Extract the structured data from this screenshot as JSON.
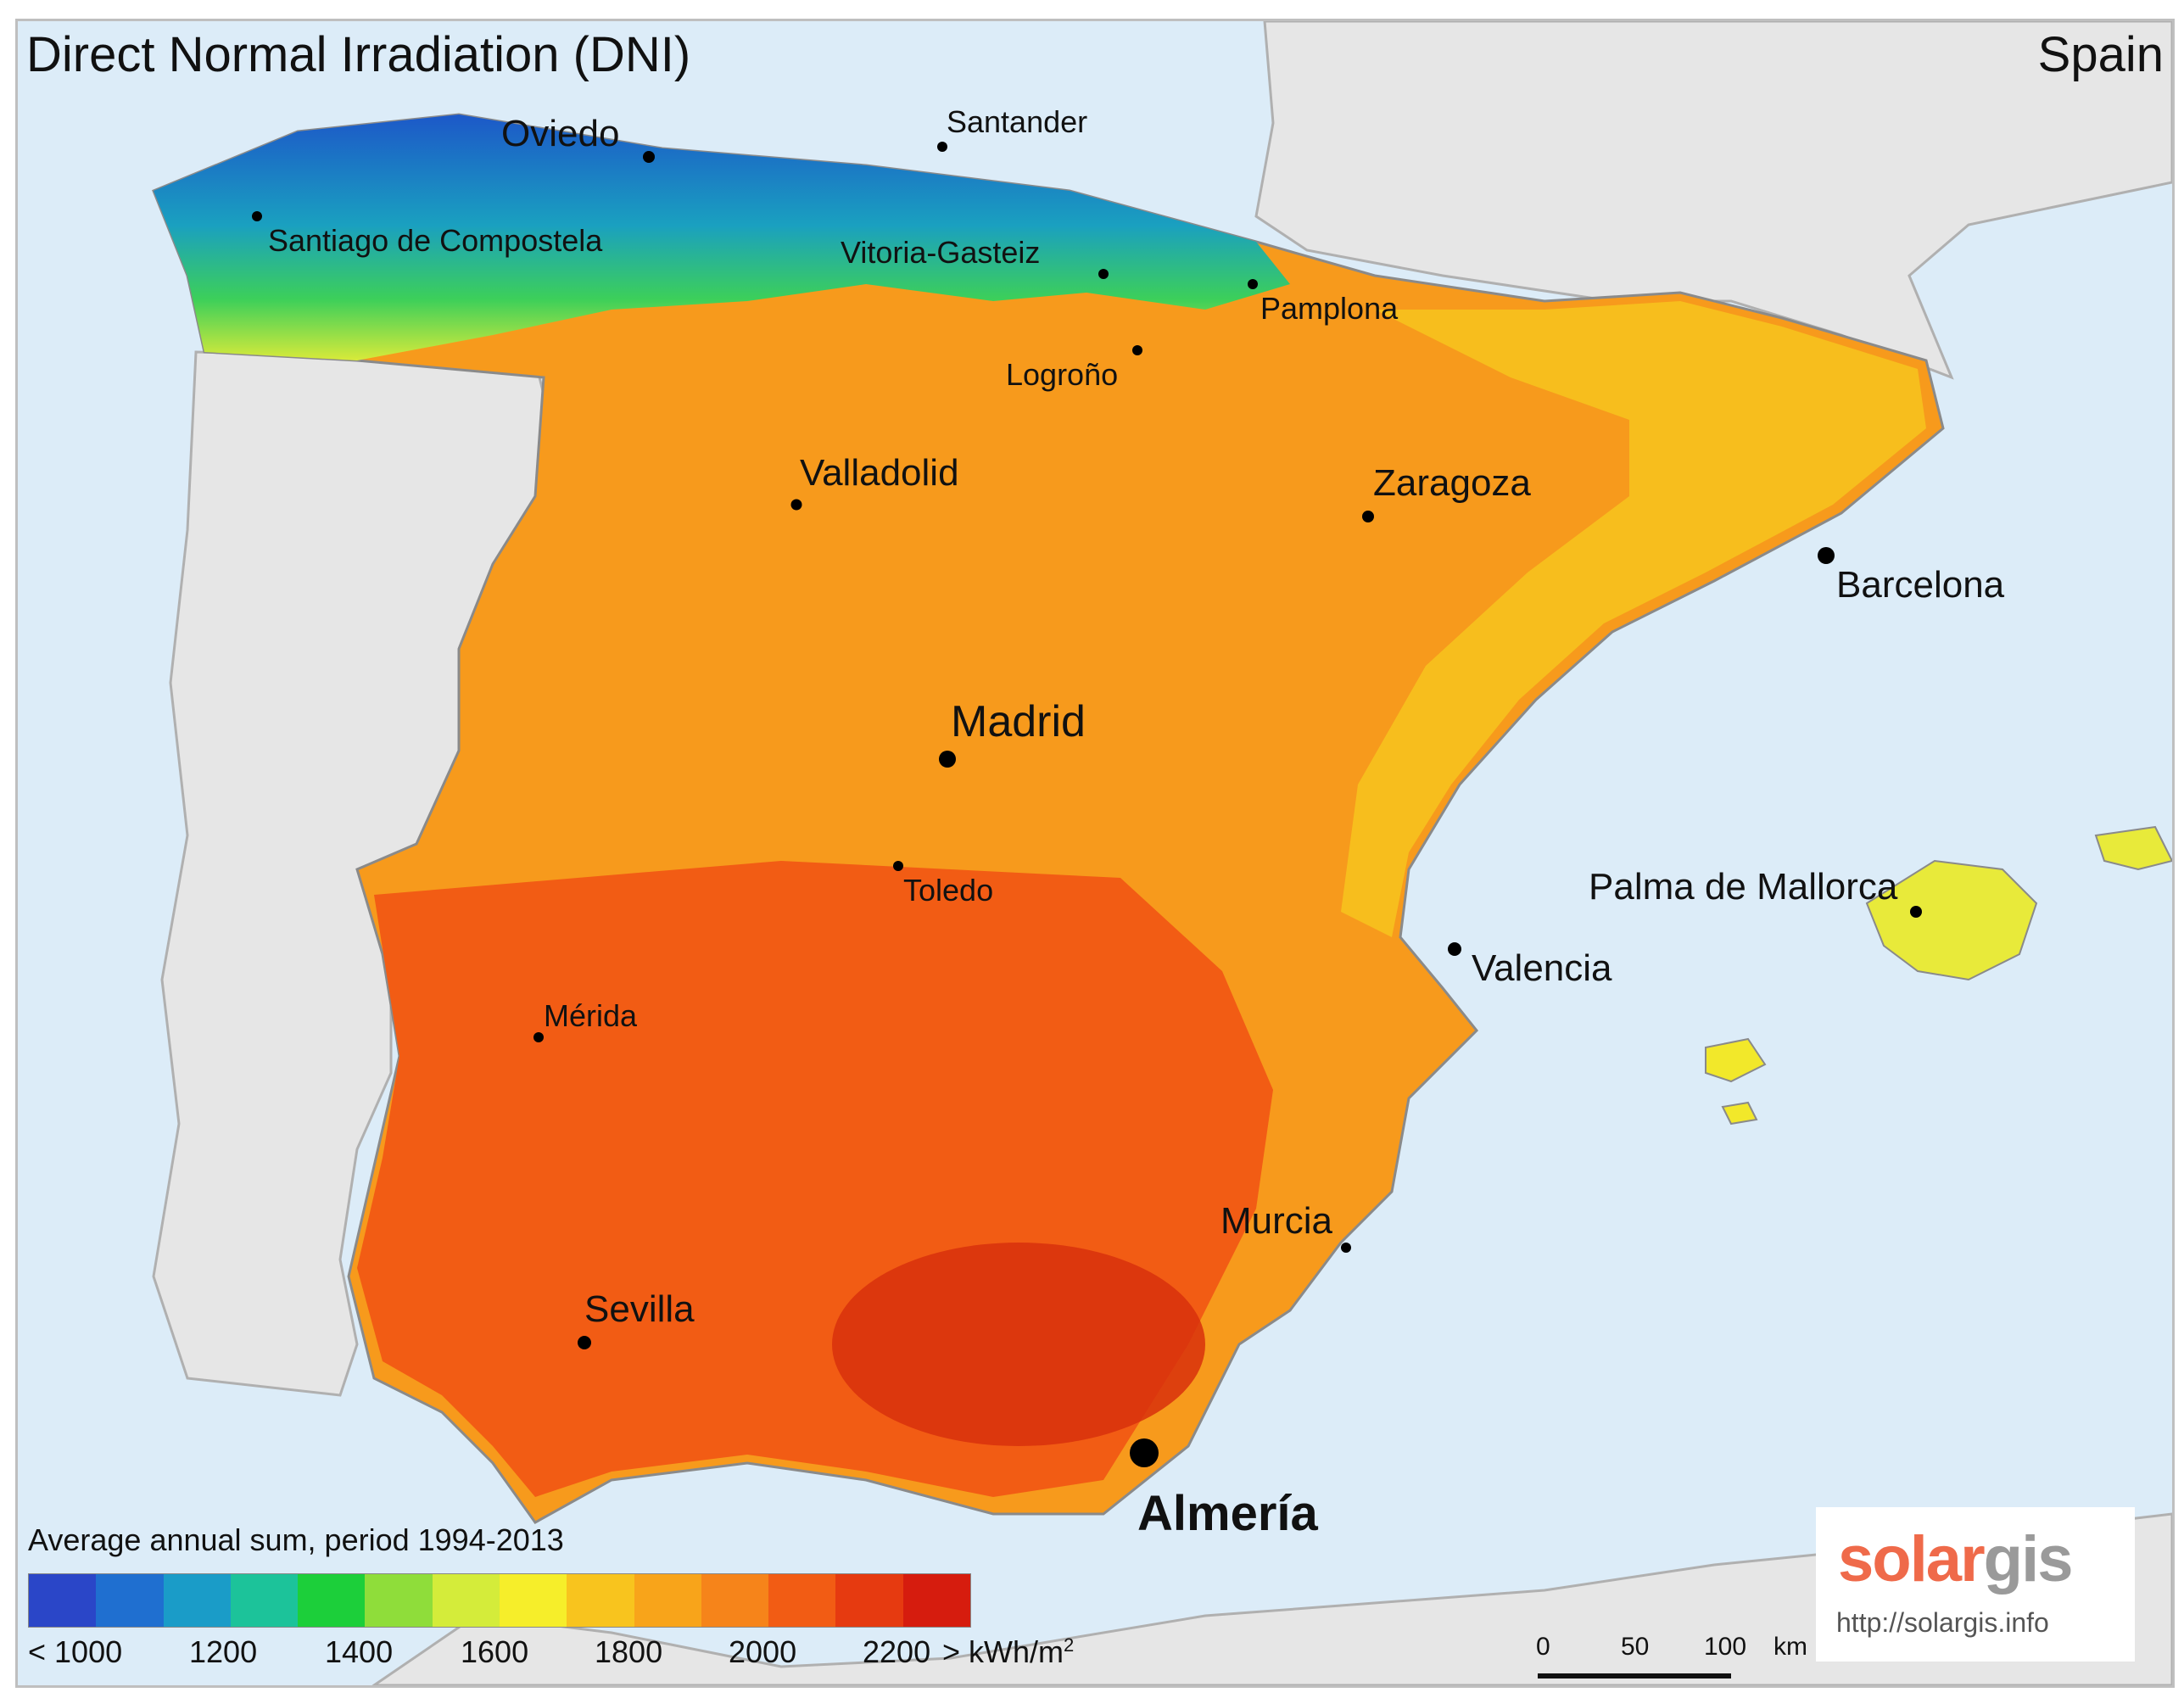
{
  "map": {
    "title": "Direct Normal Irradiation (DNI)",
    "country": "Spain",
    "colors": {
      "sea": "#dcecf8",
      "neighbor_land": "#e6e6e6",
      "border": "#9c9c9c"
    },
    "cities": [
      {
        "name": "Oviedo",
        "id": "oviedo"
      },
      {
        "name": "Santander",
        "id": "santander"
      },
      {
        "name": "Santiago de Compostela",
        "id": "santiago"
      },
      {
        "name": "Vitoria-Gasteiz",
        "id": "vitoria"
      },
      {
        "name": "Pamplona",
        "id": "pamplona"
      },
      {
        "name": "Logroño",
        "id": "logrono"
      },
      {
        "name": "Valladolid",
        "id": "valladolid"
      },
      {
        "name": "Zaragoza",
        "id": "zaragoza"
      },
      {
        "name": "Barcelona",
        "id": "barcelona"
      },
      {
        "name": "Madrid",
        "id": "madrid"
      },
      {
        "name": "Toledo",
        "id": "toledo"
      },
      {
        "name": "Palma de Mallorca",
        "id": "palma"
      },
      {
        "name": "Valencia",
        "id": "valencia"
      },
      {
        "name": "Mérida",
        "id": "merida"
      },
      {
        "name": "Murcia",
        "id": "murcia"
      },
      {
        "name": "Sevilla",
        "id": "sevilla"
      },
      {
        "name": "Almería",
        "id": "almeria"
      }
    ]
  },
  "legend": {
    "title": "Average annual sum, period 1994-2013",
    "colors": [
      "#2a46c8",
      "#1f6fd0",
      "#1a9cc8",
      "#1cc39a",
      "#1ccf3a",
      "#8fdd3a",
      "#d4ec3a",
      "#f6ee2a",
      "#f8c41e",
      "#f8a41a",
      "#f6841a",
      "#f25c14",
      "#e63a10",
      "#d61c0e"
    ],
    "ticks": [
      "< 1000",
      "1200",
      "1400",
      "1600",
      "1800",
      "2000",
      "2200"
    ],
    "unit": "> kWh/m",
    "unit_sup": "2"
  },
  "scale": {
    "labels": [
      "0",
      "50",
      "100"
    ],
    "unit": "km"
  },
  "logo": {
    "solar": "solar",
    "gis": "gis",
    "url": "http://solargis.info"
  }
}
